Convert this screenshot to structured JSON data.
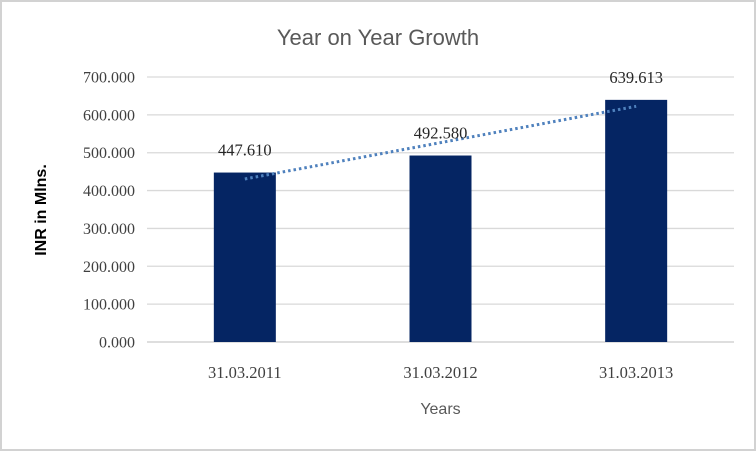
{
  "chart_data": {
    "type": "bar",
    "title": "Year on Year Growth",
    "xlabel": "Years",
    "ylabel": "INR in Mlns.",
    "categories": [
      "31.03.2011",
      "31.03.2012",
      "31.03.2013"
    ],
    "values": [
      447.61,
      492.58,
      639.613
    ],
    "data_labels": [
      "447.610",
      "492.580",
      "639.613"
    ],
    "ylim": [
      0,
      700
    ],
    "ytick_step": 100,
    "ytick_labels": [
      "0.000",
      "100.000",
      "200.000",
      "300.000",
      "400.000",
      "500.000",
      "600.000",
      "700.000"
    ],
    "grid": true,
    "legend_shown": false,
    "trendline": "linear-dotted",
    "colors": {
      "bar_fill": "#052563",
      "trendline": "#4f81bd",
      "gridline": "#d9d9d9",
      "baseline": "#c9c9c9",
      "title_text": "#595959",
      "tick_text": "#3f3f3f",
      "data_label_text": "#262626",
      "axis_title_text": "#595959",
      "frame_border": "#d2d2d2"
    }
  }
}
